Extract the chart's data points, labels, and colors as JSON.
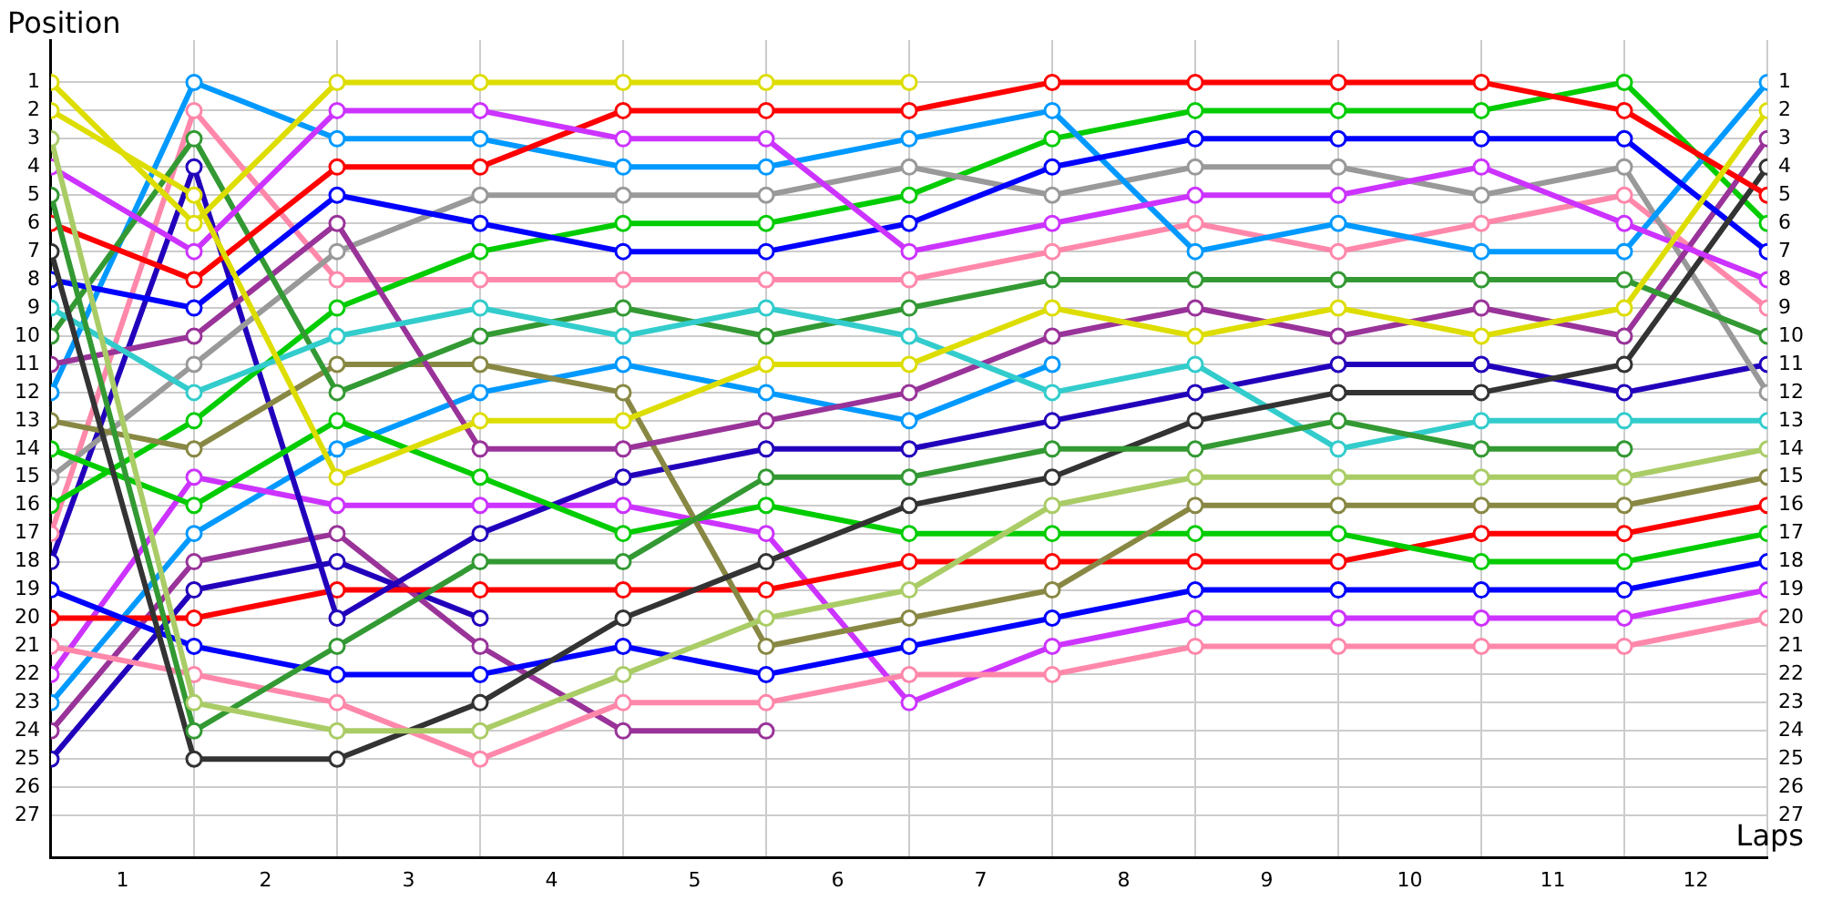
{
  "chart_data": {
    "type": "line",
    "xlabel": "Laps",
    "ylabel": "Position",
    "x": [
      0,
      1,
      2,
      3,
      4,
      5,
      6,
      7,
      8,
      9,
      10,
      11,
      12
    ],
    "xlim": [
      0,
      12
    ],
    "xticks": [
      {
        "value": 0,
        "label": null
      },
      {
        "value": 0.5,
        "label": "1"
      },
      {
        "value": 1,
        "label": null
      },
      {
        "value": 1.5,
        "label": "2"
      },
      {
        "value": 2,
        "label": null
      },
      {
        "value": 2.5,
        "label": "3"
      },
      {
        "value": 3,
        "label": null
      },
      {
        "value": 3.5,
        "label": "4"
      },
      {
        "value": 4,
        "label": null
      },
      {
        "value": 4.5,
        "label": "5"
      },
      {
        "value": 5,
        "label": null
      },
      {
        "value": 5.5,
        "label": "6"
      },
      {
        "value": 6,
        "label": null
      },
      {
        "value": 6.5,
        "label": "7"
      },
      {
        "value": 7,
        "label": null
      },
      {
        "value": 7.5,
        "label": "8"
      },
      {
        "value": 8,
        "label": null
      },
      {
        "value": 8.5,
        "label": "9"
      },
      {
        "value": 9,
        "label": null
      },
      {
        "value": 9.5,
        "label": "10"
      },
      {
        "value": 10,
        "label": null
      },
      {
        "value": 10.5,
        "label": "11"
      },
      {
        "value": 11,
        "label": null
      },
      {
        "value": 11.5,
        "label": "12"
      },
      {
        "value": 12,
        "label": null
      }
    ],
    "ylim": [
      28.5,
      -0.5
    ],
    "yticks": [
      1,
      2,
      3,
      4,
      5,
      6,
      7,
      8,
      9,
      10,
      11,
      12,
      13,
      14,
      15,
      16,
      17,
      18,
      19,
      20,
      21,
      22,
      23,
      24,
      25,
      26,
      27
    ],
    "y2lim": [
      28.5,
      -0.5
    ],
    "y2ticks": [
      1,
      2,
      3,
      4,
      5,
      6,
      7,
      8,
      9,
      10,
      11,
      12,
      13,
      14,
      15,
      16,
      17,
      18,
      19,
      20,
      21,
      22,
      23,
      24,
      25,
      26,
      27
    ],
    "grid": true,
    "legend": false,
    "marker": "circle",
    "line_style": "solid",
    "series": [
      {
        "color": "#dddd00",
        "values": [
          1,
          6,
          1,
          1,
          1,
          1,
          1,
          null,
          null,
          null,
          null,
          null,
          null
        ]
      },
      {
        "color": "#dddd00",
        "values": [
          2,
          5,
          15,
          13,
          13,
          11,
          11,
          9,
          10,
          9,
          10,
          9,
          2
        ]
      },
      {
        "color": "#aacc66",
        "values": [
          3,
          23,
          24,
          24,
          22,
          20,
          19,
          16,
          15,
          15,
          15,
          15,
          14
        ]
      },
      {
        "color": "#cc33ff",
        "values": [
          4,
          7,
          2,
          2,
          3,
          3,
          7,
          6,
          5,
          5,
          4,
          6,
          8
        ]
      },
      {
        "color": "#339933",
        "values": [
          5,
          24,
          21,
          18,
          18,
          15,
          15,
          14,
          14,
          13,
          14,
          14,
          null
        ]
      },
      {
        "color": "#ff0000",
        "values": [
          6,
          8,
          4,
          4,
          2,
          2,
          2,
          1,
          1,
          1,
          1,
          2,
          5
        ]
      },
      {
        "color": "#333333",
        "values": [
          7,
          25,
          25,
          23,
          20,
          18,
          16,
          15,
          13,
          12,
          12,
          11,
          4
        ]
      },
      {
        "color": "#0000ff",
        "values": [
          8,
          9,
          5,
          6,
          7,
          7,
          6,
          4,
          3,
          3,
          3,
          3,
          7
        ]
      },
      {
        "color": "#33cccc",
        "values": [
          9,
          12,
          10,
          9,
          10,
          9,
          10,
          12,
          11,
          14,
          13,
          13,
          13
        ]
      },
      {
        "color": "#339933",
        "values": [
          10,
          3,
          12,
          10,
          9,
          10,
          9,
          8,
          8,
          8,
          8,
          8,
          10
        ]
      },
      {
        "color": "#993399",
        "values": [
          11,
          10,
          6,
          14,
          14,
          13,
          12,
          10,
          9,
          10,
          9,
          10,
          3
        ]
      },
      {
        "color": "#0099ff",
        "values": [
          12,
          1,
          3,
          3,
          4,
          4,
          3,
          2,
          7,
          6,
          7,
          7,
          1
        ]
      },
      {
        "color": "#888844",
        "values": [
          13,
          14,
          11,
          11,
          12,
          21,
          20,
          19,
          16,
          16,
          16,
          16,
          15
        ]
      },
      {
        "color": "#00cc00",
        "values": [
          14,
          16,
          13,
          15,
          17,
          16,
          17,
          17,
          17,
          17,
          18,
          18,
          17
        ]
      },
      {
        "color": "#999999",
        "values": [
          15,
          11,
          7,
          5,
          5,
          5,
          4,
          5,
          4,
          4,
          5,
          4,
          12
        ]
      },
      {
        "color": "#00cc00",
        "values": [
          16,
          13,
          9,
          7,
          6,
          6,
          5,
          3,
          2,
          2,
          2,
          1,
          6
        ]
      },
      {
        "color": "#ff88aa",
        "values": [
          17,
          2,
          8,
          8,
          8,
          8,
          8,
          7,
          6,
          7,
          6,
          5,
          9
        ]
      },
      {
        "color": "#2200bb",
        "values": [
          18,
          4,
          20,
          17,
          15,
          14,
          14,
          13,
          12,
          11,
          11,
          12,
          11
        ]
      },
      {
        "color": "#0000ff",
        "values": [
          19,
          21,
          22,
          22,
          21,
          22,
          21,
          20,
          19,
          19,
          19,
          19,
          18
        ]
      },
      {
        "color": "#ff0000",
        "values": [
          20,
          20,
          19,
          19,
          19,
          19,
          18,
          18,
          18,
          18,
          17,
          17,
          16
        ]
      },
      {
        "color": "#ff88aa",
        "values": [
          21,
          22,
          23,
          25,
          23,
          23,
          22,
          22,
          21,
          21,
          21,
          21,
          20
        ]
      },
      {
        "color": "#cc33ff",
        "values": [
          22,
          15,
          16,
          16,
          16,
          17,
          23,
          21,
          20,
          20,
          20,
          20,
          19
        ]
      },
      {
        "color": "#0099ff",
        "values": [
          23,
          17,
          14,
          12,
          11,
          12,
          13,
          11,
          null,
          null,
          null,
          null,
          null
        ]
      },
      {
        "color": "#993399",
        "values": [
          24,
          18,
          17,
          21,
          24,
          24,
          null,
          null,
          null,
          null,
          null,
          null,
          null
        ]
      },
      {
        "color": "#2200bb",
        "values": [
          25,
          19,
          18,
          20,
          null,
          null,
          null,
          null,
          null,
          null,
          null,
          null,
          null
        ]
      }
    ]
  }
}
